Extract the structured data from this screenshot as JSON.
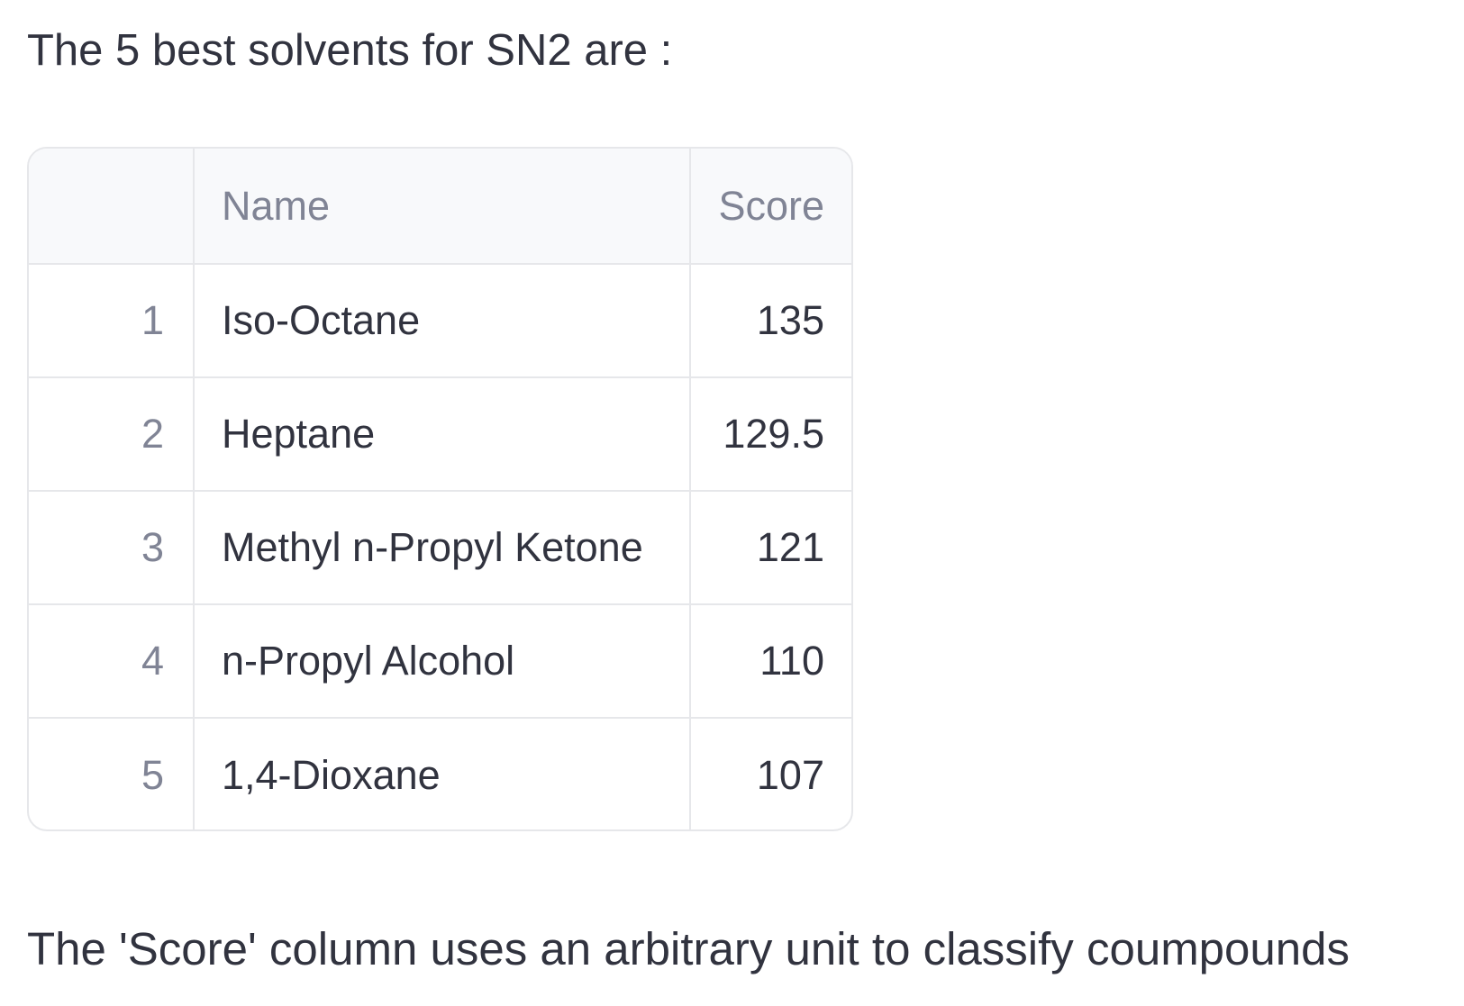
{
  "intro_text": "The 5 best solvents for SN2 are :",
  "table": {
    "columns": [
      "",
      "Name",
      "Score"
    ],
    "rows": [
      {
        "index": "1",
        "name": "Iso-Octane",
        "score": "135"
      },
      {
        "index": "2",
        "name": "Heptane",
        "score": "129.5"
      },
      {
        "index": "3",
        "name": "Methyl n-Propyl Ketone",
        "score": "121"
      },
      {
        "index": "4",
        "name": "n-Propyl Alcohol",
        "score": "110"
      },
      {
        "index": "5",
        "name": "1,4-Dioxane",
        "score": "107"
      }
    ]
  },
  "note_text": "The 'Score' column uses an arbitrary unit to classify coumpounds"
}
